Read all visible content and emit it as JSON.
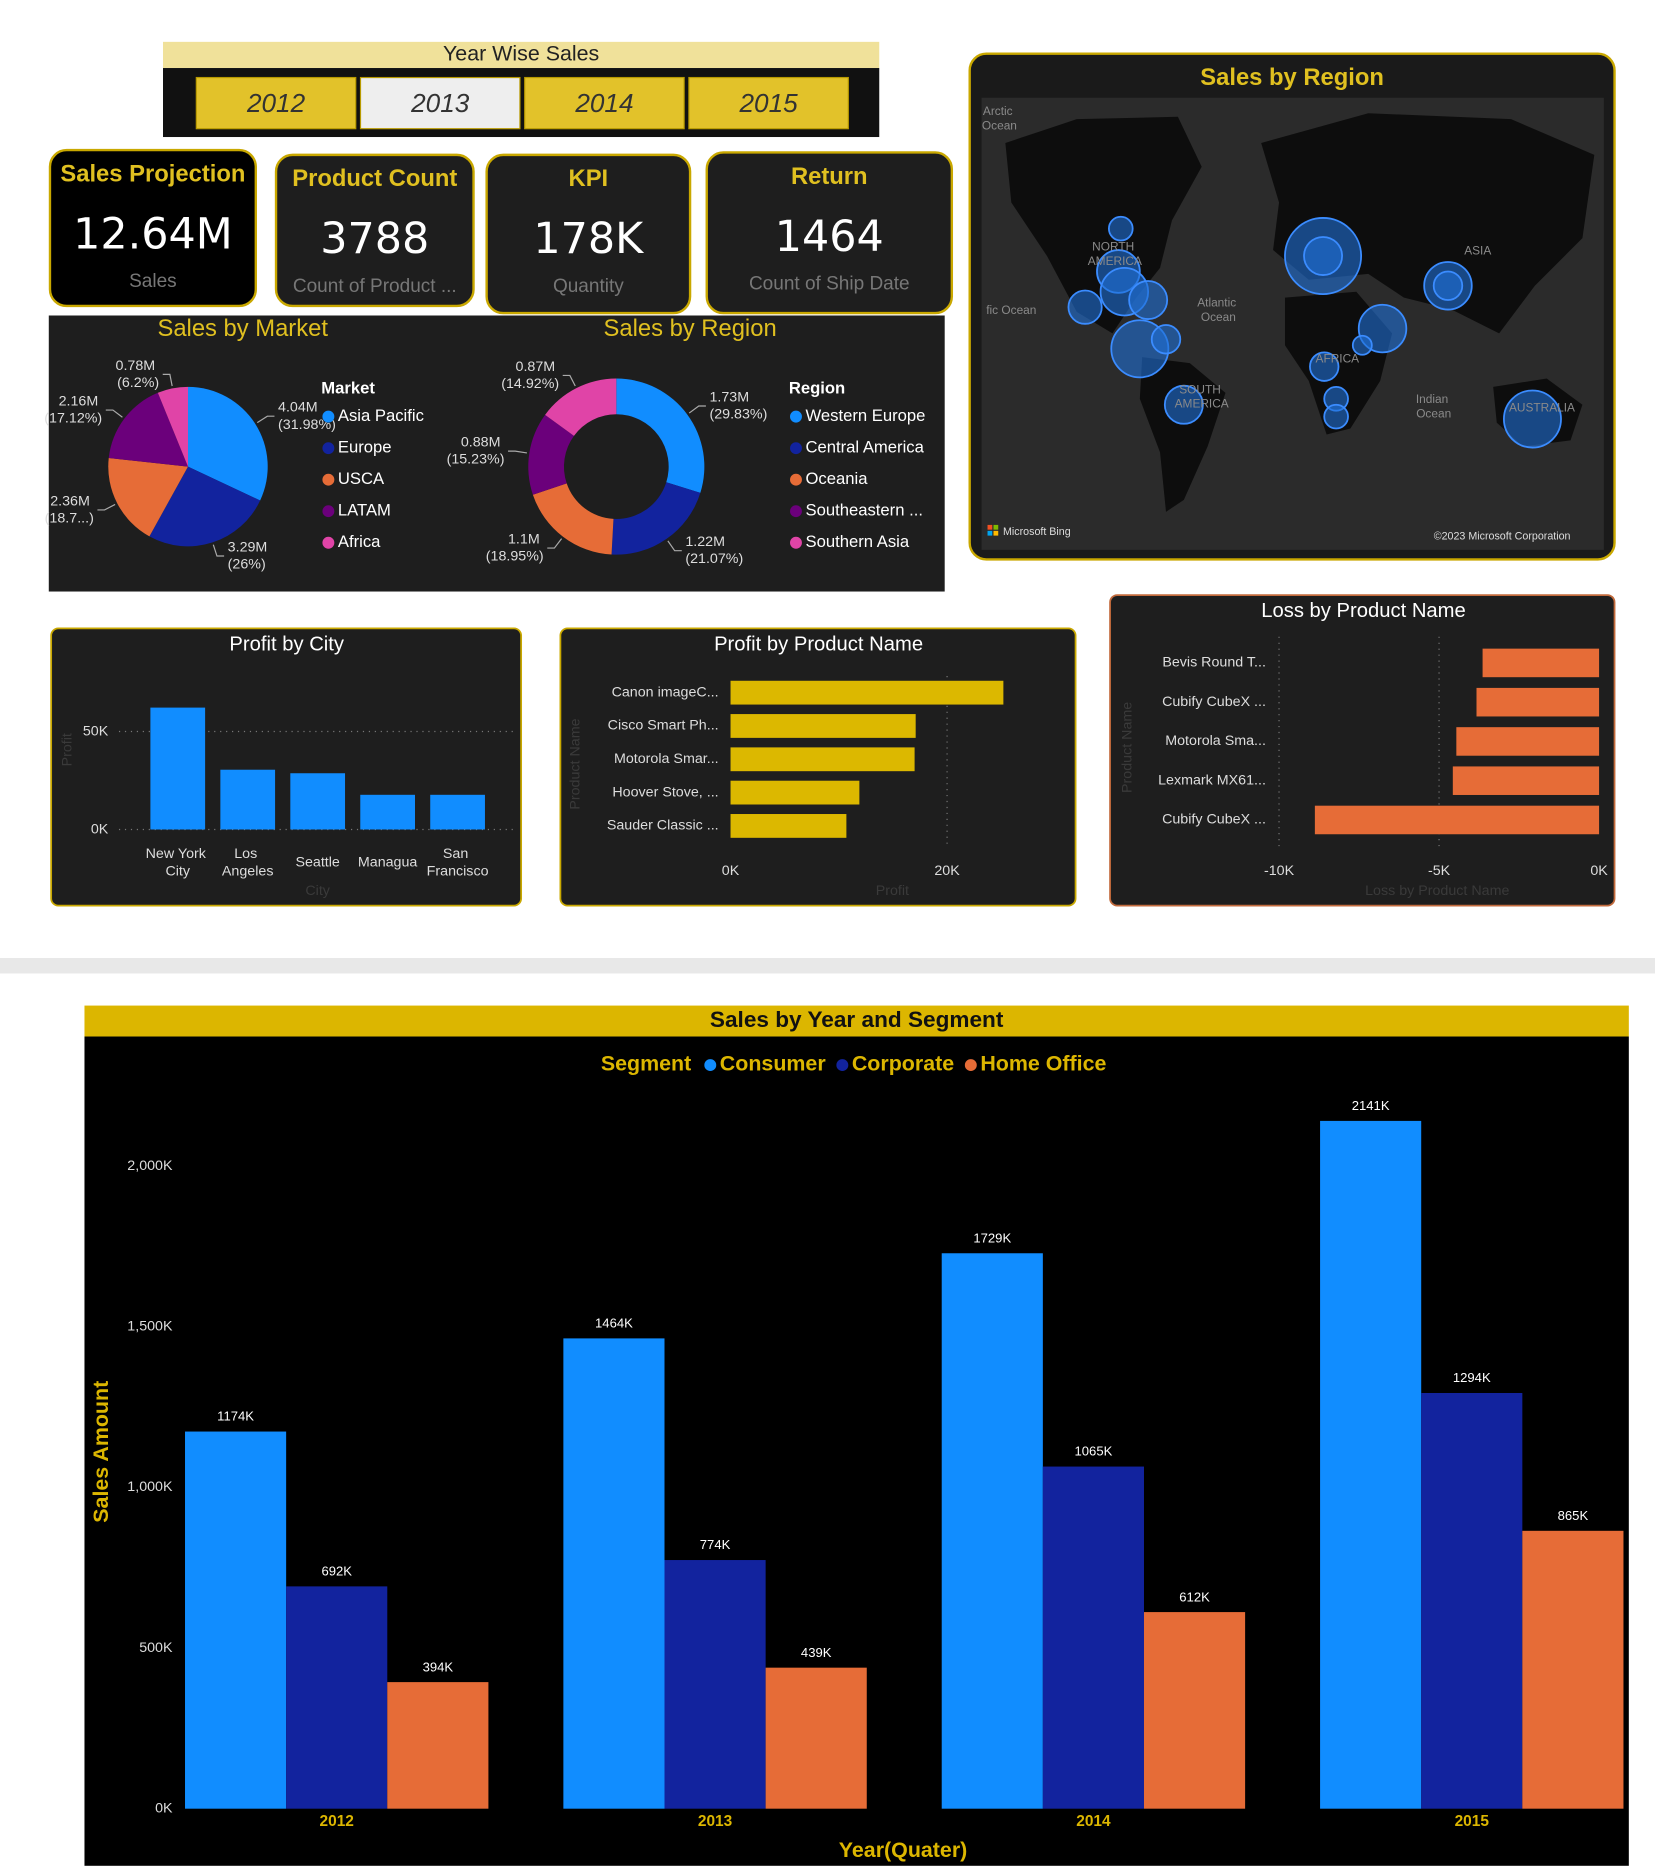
{
  "slicer": {
    "title": "Year Wise Sales",
    "items": [
      "2012",
      "2013",
      "2014",
      "2015"
    ],
    "selected": "2013"
  },
  "cards": [
    {
      "title": "Sales Projection",
      "value": "12.64M",
      "label": "Sales"
    },
    {
      "title": "Product Count",
      "value": "3788",
      "label": "Count of Product ..."
    },
    {
      "title": "KPI",
      "value": "178K",
      "label": "Quantity"
    },
    {
      "title": "Return",
      "value": "1464",
      "label": "Count of Ship Date"
    }
  ],
  "map": {
    "title": "Sales by Region",
    "places": [
      "Arctic Ocean",
      "NORTH AMERICA",
      "ASIA",
      "Atlantic Ocean",
      "fic Ocean",
      "AFRICA",
      "SOUTH AMERICA",
      "Indian Ocean",
      "AUSTRALIA"
    ],
    "provider": "Microsoft Bing",
    "attribution": "©2023 Microsoft Corporation"
  },
  "chart_data": [
    {
      "type": "pie",
      "title": "Sales by Market",
      "legend_title": "Market",
      "categories": [
        "Asia Pacific",
        "Europe",
        "USCA",
        "LATAM",
        "Africa"
      ],
      "values": [
        4.04,
        3.29,
        2.36,
        2.16,
        0.78
      ],
      "value_labels": [
        "4.04M (31.98%)",
        "3.29M (26%)",
        "2.36M (18.7...)",
        "2.16M (17.12%)",
        "0.78M (6.2%)"
      ],
      "colors": [
        "#118dff",
        "#12239e",
        "#e66c37",
        "#6b007b",
        "#e044a7"
      ],
      "legend": "right"
    },
    {
      "type": "donut",
      "title": "Sales by Region",
      "legend_title": "Region",
      "categories": [
        "Western Europe",
        "Central America",
        "Oceania",
        "Southeastern ...",
        "Southern Asia"
      ],
      "values": [
        1.73,
        1.22,
        1.1,
        0.88,
        0.87
      ],
      "value_labels": [
        "1.73M (29.83%)",
        "1.22M (21.07%)",
        "1.1M (18.95%)",
        "0.88M (15.23%)",
        "0.87M (14.92%)"
      ],
      "colors": [
        "#118dff",
        "#12239e",
        "#e66c37",
        "#6b007b",
        "#e044a7"
      ],
      "legend": "right"
    },
    {
      "type": "bar",
      "title": "Profit by City",
      "x_label": "City",
      "y_label": "Profit",
      "categories": [
        "New York City",
        "Los Angeles",
        "Seattle",
        "Managua",
        "San Francisco"
      ],
      "values": [
        62200,
        30500,
        28700,
        17700,
        17700
      ],
      "color": "#118dff",
      "ylim": [
        0,
        68000
      ],
      "yticks": [
        {
          "value": 0,
          "label": "0K"
        },
        {
          "value": 50000,
          "label": "50K"
        }
      ],
      "grid": true
    },
    {
      "type": "bar",
      "orientation": "horizontal",
      "title": "Profit by Product Name",
      "x_label": "Profit",
      "y_label": "Product Name",
      "categories": [
        "Canon imageC...",
        "Cisco Smart Ph...",
        "Motorola Smar...",
        "Hoover Stove, ...",
        "Sauder Classic ..."
      ],
      "values": [
        25200,
        17100,
        17000,
        11900,
        10700
      ],
      "color": "#dcb800",
      "xlim": [
        0,
        30000
      ],
      "xticks": [
        {
          "value": 0,
          "label": "0K"
        },
        {
          "value": 20000,
          "label": "20K"
        }
      ],
      "grid": true
    },
    {
      "type": "bar",
      "orientation": "horizontal",
      "title": "Loss by Product Name",
      "x_label": "Loss by Product Name",
      "y_label": "Product Name",
      "categories": [
        "Bevis Round T...",
        "Cubify CubeX ...",
        "Motorola Sma...",
        "Lexmark MX61...",
        "Cubify CubeX ..."
      ],
      "values": [
        -3640,
        -3830,
        -4460,
        -4570,
        -8880
      ],
      "color": "#e66c37",
      "xlim": [
        -10000,
        0
      ],
      "xticks": [
        {
          "value": -10000,
          "label": "-10K"
        },
        {
          "value": -5000,
          "label": "-5K"
        },
        {
          "value": 0,
          "label": "0K"
        }
      ],
      "grid": true
    },
    {
      "type": "bar",
      "title": "Sales by Year and Segment",
      "legend_title": "Segment",
      "x_label": "Year(Quater)",
      "y_label": "Sales Amount",
      "categories": [
        "2012",
        "2013",
        "2014",
        "2015"
      ],
      "series": [
        {
          "name": "Consumer",
          "color": "#118dff",
          "values": [
            1174000,
            1464000,
            1729000,
            2141000
          ],
          "value_labels": [
            "1174K",
            "1464K",
            "1729K",
            "2141K"
          ]
        },
        {
          "name": "Corporate",
          "color": "#12239e",
          "values": [
            692000,
            774000,
            1065000,
            1294000
          ],
          "value_labels": [
            "692K",
            "774K",
            "1065K",
            "1294K"
          ]
        },
        {
          "name": "Home Office",
          "color": "#e66c37",
          "values": [
            394000,
            439000,
            612000,
            865000
          ],
          "value_labels": [
            "394K",
            "439K",
            "612K",
            "865K"
          ]
        }
      ],
      "ylim": [
        0,
        2200000
      ],
      "yticks": [
        {
          "value": 0,
          "label": "0K"
        },
        {
          "value": 500000,
          "label": "500K"
        },
        {
          "value": 1000000,
          "label": "1,000K"
        },
        {
          "value": 1500000,
          "label": "1,500K"
        },
        {
          "value": 2000000,
          "label": "2,000K"
        }
      ],
      "grid": false,
      "legend": "top"
    }
  ]
}
